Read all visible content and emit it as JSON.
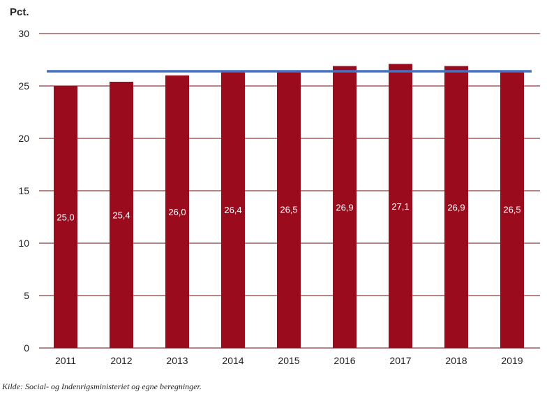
{
  "chart_data": {
    "type": "bar",
    "ylabel": "Pct.",
    "categories": [
      "2011",
      "2012",
      "2013",
      "2014",
      "2015",
      "2016",
      "2017",
      "2018",
      "2019"
    ],
    "values": [
      25.0,
      25.4,
      26.0,
      26.4,
      26.5,
      26.9,
      27.1,
      26.9,
      26.5
    ],
    "value_labels": [
      "25,0",
      "25,4",
      "26,0",
      "26,4",
      "26,5",
      "26,9",
      "27,1",
      "26,9",
      "26,5"
    ],
    "ylim": [
      0,
      30
    ],
    "yticks": [
      "0",
      "5",
      "10",
      "15",
      "20",
      "25",
      "30"
    ],
    "reference_line": 26.4,
    "grid": true,
    "legend": "none",
    "colors": {
      "bar": "#9b0b1e",
      "grid": "#8b3a3a",
      "reference_line": "#4472c4"
    }
  },
  "source": "Kilde: Social- og Indenrigsministeriet og egne beregninger."
}
